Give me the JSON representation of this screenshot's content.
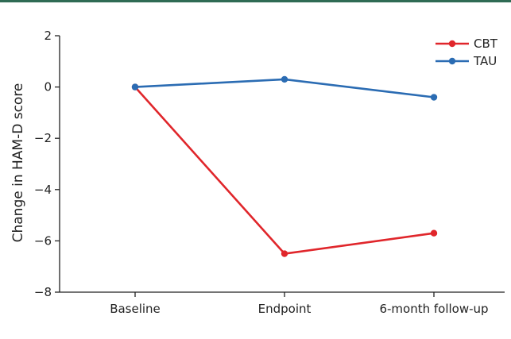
{
  "chart_data": {
    "type": "line",
    "categories": [
      "Baseline",
      "Endpoint",
      "6-month follow-up"
    ],
    "series": [
      {
        "name": "CBT",
        "values": [
          0.0,
          -6.5,
          -5.7
        ],
        "color": "#e0262b"
      },
      {
        "name": "TAU",
        "values": [
          0.0,
          0.3,
          -0.4
        ],
        "color": "#2b6cb3"
      }
    ],
    "ylabel": "Change in HAM-D score",
    "ylim": [
      -8,
      2
    ],
    "yticks": [
      "2",
      "0",
      "−2",
      "−4",
      "−6",
      "−8"
    ],
    "yticks_values": [
      2,
      0,
      -2,
      -4,
      -6,
      -8
    ],
    "legend_position": "top-right",
    "grid": false
  },
  "colors": {
    "accent_rule": "#2f6b54",
    "axis": "#222222"
  }
}
